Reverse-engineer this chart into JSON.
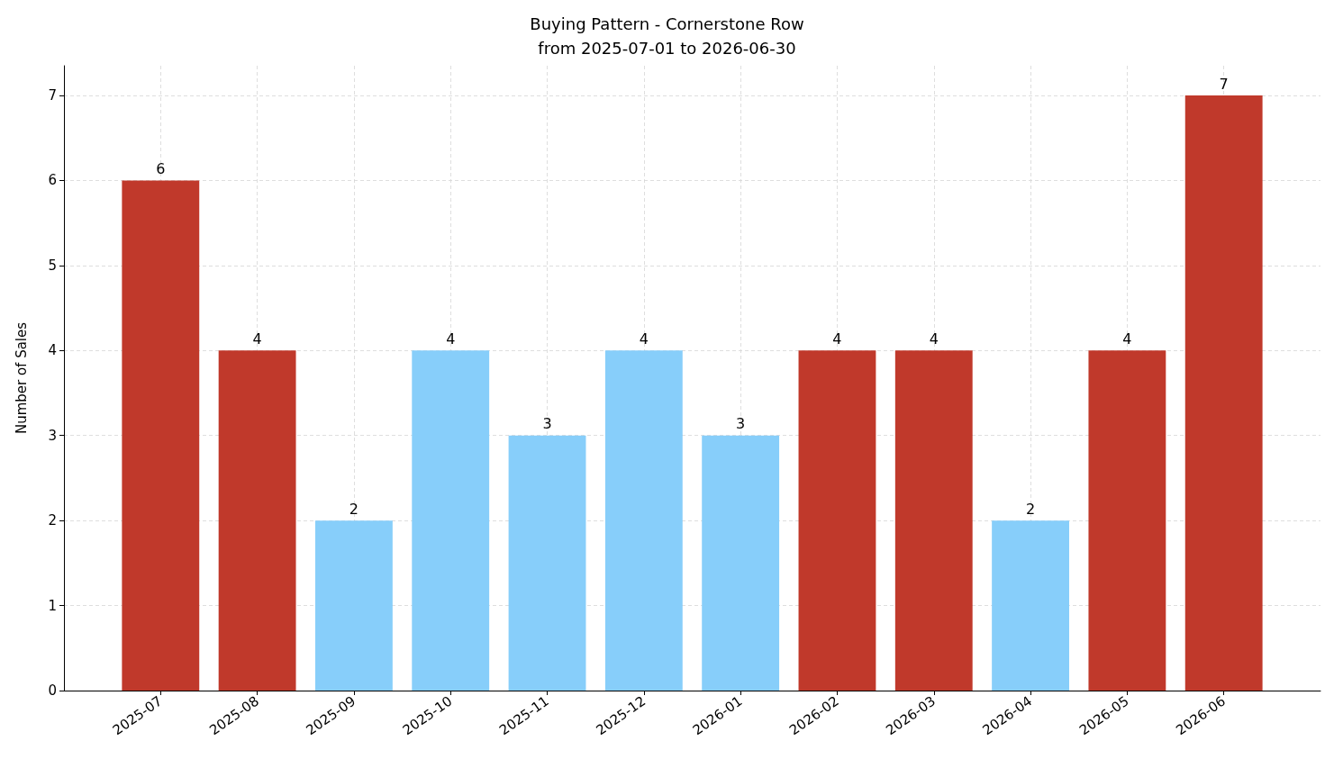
{
  "chart_data": {
    "type": "bar",
    "title": "Buying Pattern - Cornerstone Row",
    "subtitle": "from 2025-07-01 to 2026-06-30",
    "ylabel": "Number of Sales",
    "categories": [
      "2025-07",
      "2025-08",
      "2025-09",
      "2025-10",
      "2025-11",
      "2025-12",
      "2026-01",
      "2026-02",
      "2026-03",
      "2026-04",
      "2026-05",
      "2026-06"
    ],
    "values": [
      6,
      4,
      2,
      4,
      3,
      4,
      3,
      4,
      4,
      2,
      4,
      7
    ],
    "colors": [
      "#c0392b",
      "#c0392b",
      "#87cefa",
      "#87cefa",
      "#87cefa",
      "#87cefa",
      "#87cefa",
      "#c0392b",
      "#c0392b",
      "#87cefa",
      "#c0392b",
      "#c0392b"
    ],
    "ylim": [
      0,
      7.35
    ],
    "yticks": [
      0,
      1,
      2,
      3,
      4,
      5,
      6,
      7
    ],
    "grid": true,
    "data_labels": true
  }
}
